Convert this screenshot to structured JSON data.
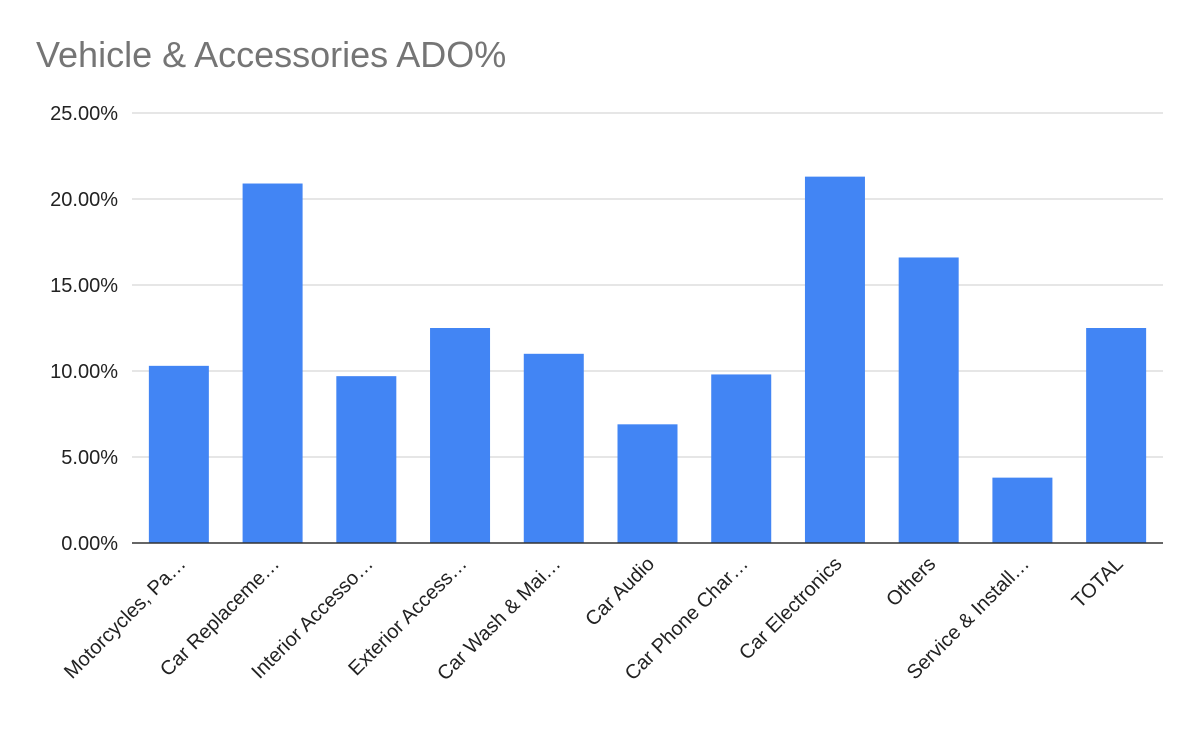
{
  "chart_data": {
    "type": "bar",
    "title": "Vehicle & Accessories ADO%",
    "xlabel": "",
    "ylabel": "",
    "ylim": [
      0,
      25
    ],
    "yticks": [
      "0.00%",
      "5.00%",
      "10.00%",
      "15.00%",
      "20.00%",
      "25.00%"
    ],
    "ytick_values": [
      0,
      5,
      10,
      15,
      20,
      25
    ],
    "grid": true,
    "legend": "none",
    "bar_color": "#4285f4",
    "categories": [
      "Motorcycles, Pa…",
      "Car Replaceme…",
      "Interior Accesso…",
      "Exterior Access…",
      "Car Wash & Mai…",
      "Car Audio",
      "Car Phone Char…",
      "Car Electronics",
      "Others",
      "Service & Install…",
      "TOTAL"
    ],
    "values": [
      10.3,
      20.9,
      9.7,
      12.5,
      11.0,
      6.9,
      9.8,
      21.3,
      16.6,
      3.8,
      12.5
    ]
  }
}
